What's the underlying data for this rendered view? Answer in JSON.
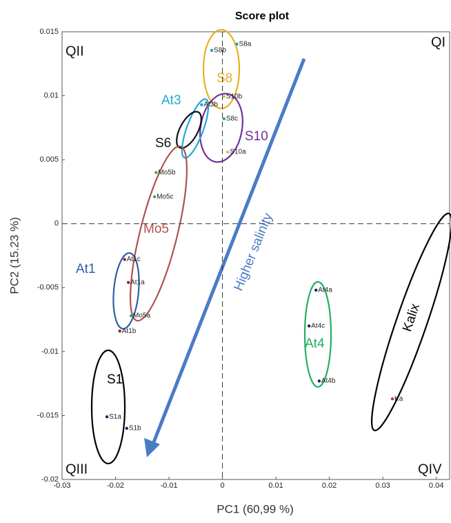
{
  "chart_data": {
    "type": "scatter",
    "title": "Score plot",
    "x_label": "PC1 (60,99 %)",
    "y_label": "PC2 (15.23 %)",
    "xlim": [
      -0.03,
      0.0425
    ],
    "ylim": [
      -0.02,
      0.015
    ],
    "xticks": [
      -0.03,
      -0.02,
      -0.01,
      0,
      0.01,
      0.02,
      0.03,
      0.04
    ],
    "yticks": [
      0.015,
      0.01,
      0.005,
      0,
      -0.005,
      -0.01,
      -0.015,
      -0.02
    ],
    "points": [
      {
        "label": "S8a",
        "x": 0.0027,
        "y": 0.01404,
        "color": "#20a0b0"
      },
      {
        "label": "S8b",
        "x": -0.002,
        "y": 0.01355,
        "color": "#20a0b0"
      },
      {
        "label": "S10b",
        "x": 0.0003,
        "y": 0.00994,
        "color": "#e0c040"
      },
      {
        "label": "S8c",
        "x": 0.0003,
        "y": 0.0082,
        "color": "#20a0b0"
      },
      {
        "label": "S10a",
        "x": 0.001,
        "y": 0.0056,
        "color": "#e0c040"
      },
      {
        "label": "At3b",
        "x": -0.0039,
        "y": 0.0093,
        "color": "#20a0b0"
      },
      {
        "label": "Mo5b",
        "x": -0.0124,
        "y": 0.004,
        "color": "#30b060"
      },
      {
        "label": "Mo5c",
        "x": -0.0127,
        "y": 0.0021,
        "color": "#30b060"
      },
      {
        "label": "At1c",
        "x": -0.0183,
        "y": -0.0028,
        "color": "#a02020"
      },
      {
        "label": "At1a",
        "x": -0.0176,
        "y": -0.0046,
        "color": "#a02020"
      },
      {
        "label": "Mo5a",
        "x": -0.0171,
        "y": -0.0072,
        "color": "#30b060"
      },
      {
        "label": "At1b",
        "x": -0.0192,
        "y": -0.0084,
        "color": "#a02020"
      },
      {
        "label": "S1a",
        "x": -0.0216,
        "y": -0.0151,
        "color": "#202060"
      },
      {
        "label": "S1b",
        "x": -0.0179,
        "y": -0.016,
        "color": "#202060"
      },
      {
        "label": "At4a",
        "x": 0.0175,
        "y": -0.0052,
        "color": "#202060"
      },
      {
        "label": "At4c",
        "x": 0.0162,
        "y": -0.008,
        "color": "#202060"
      },
      {
        "label": "At4b",
        "x": 0.0181,
        "y": -0.0123,
        "color": "#202060"
      },
      {
        "label": "Ka",
        "x": 0.0318,
        "y": -0.0137,
        "color": "#c03030"
      }
    ],
    "groups": [
      {
        "name": "S8",
        "color": "#e8b020"
      },
      {
        "name": "S10",
        "color": "#7030a0"
      },
      {
        "name": "At3",
        "color": "#20a8d8"
      },
      {
        "name": "S6",
        "color": "#101020"
      },
      {
        "name": "Mo5",
        "color": "#b05050"
      },
      {
        "name": "At1",
        "color": "#2e5fa0"
      },
      {
        "name": "S1",
        "color": "#000000"
      },
      {
        "name": "At4",
        "color": "#20b060"
      },
      {
        "name": "Kalix",
        "color": "#000000"
      }
    ],
    "arrow_text": "Higher salinity",
    "quadrants": [
      "QI",
      "QII",
      "QIII",
      "QIV"
    ]
  }
}
